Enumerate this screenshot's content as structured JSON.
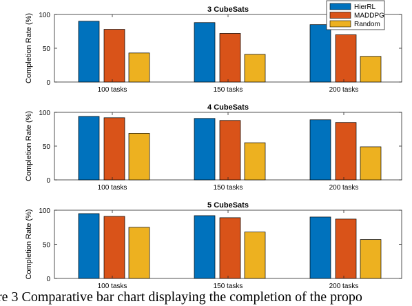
{
  "chart_data": [
    {
      "type": "bar",
      "title": "3 CubeSats",
      "ylabel": "Completion Rate (%)",
      "xlabel": "",
      "categories": [
        "100 tasks",
        "150 tasks",
        "200 tasks"
      ],
      "ylim": [
        0,
        100
      ],
      "yticks": [
        0,
        50,
        100
      ],
      "series": [
        {
          "name": "HierRL",
          "values": [
            90,
            88,
            85
          ]
        },
        {
          "name": "MADDPG",
          "values": [
            78,
            72,
            70
          ]
        },
        {
          "name": "Random",
          "values": [
            43,
            41,
            38
          ]
        }
      ],
      "legend": "top-right"
    },
    {
      "type": "bar",
      "title": "4 CubeSats",
      "ylabel": "Completion Rate (%)",
      "xlabel": "",
      "categories": [
        "100 tasks",
        "150 tasks",
        "200 tasks"
      ],
      "ylim": [
        0,
        100
      ],
      "yticks": [
        0,
        50,
        100
      ],
      "series": [
        {
          "name": "HierRL",
          "values": [
            94,
            91,
            89
          ]
        },
        {
          "name": "MADDPG",
          "values": [
            92,
            88,
            85
          ]
        },
        {
          "name": "Random",
          "values": [
            69,
            55,
            49
          ]
        }
      ]
    },
    {
      "type": "bar",
      "title": "5 CubeSats",
      "ylabel": "Completion Rate (%)",
      "xlabel": "",
      "categories": [
        "100 tasks",
        "150 tasks",
        "200 tasks"
      ],
      "ylim": [
        0,
        100
      ],
      "yticks": [
        0,
        50,
        100
      ],
      "series": [
        {
          "name": "HierRL",
          "values": [
            95,
            92,
            90
          ]
        },
        {
          "name": "MADDPG",
          "values": [
            91,
            89,
            87
          ]
        },
        {
          "name": "Random",
          "values": [
            75,
            68,
            57
          ]
        }
      ]
    }
  ],
  "colors": {
    "HierRL": "#0072BD",
    "MADDPG": "#D95319",
    "Random": "#EDB120"
  },
  "caption": "ure 3 Comparative bar chart displaying the completion of the propo"
}
